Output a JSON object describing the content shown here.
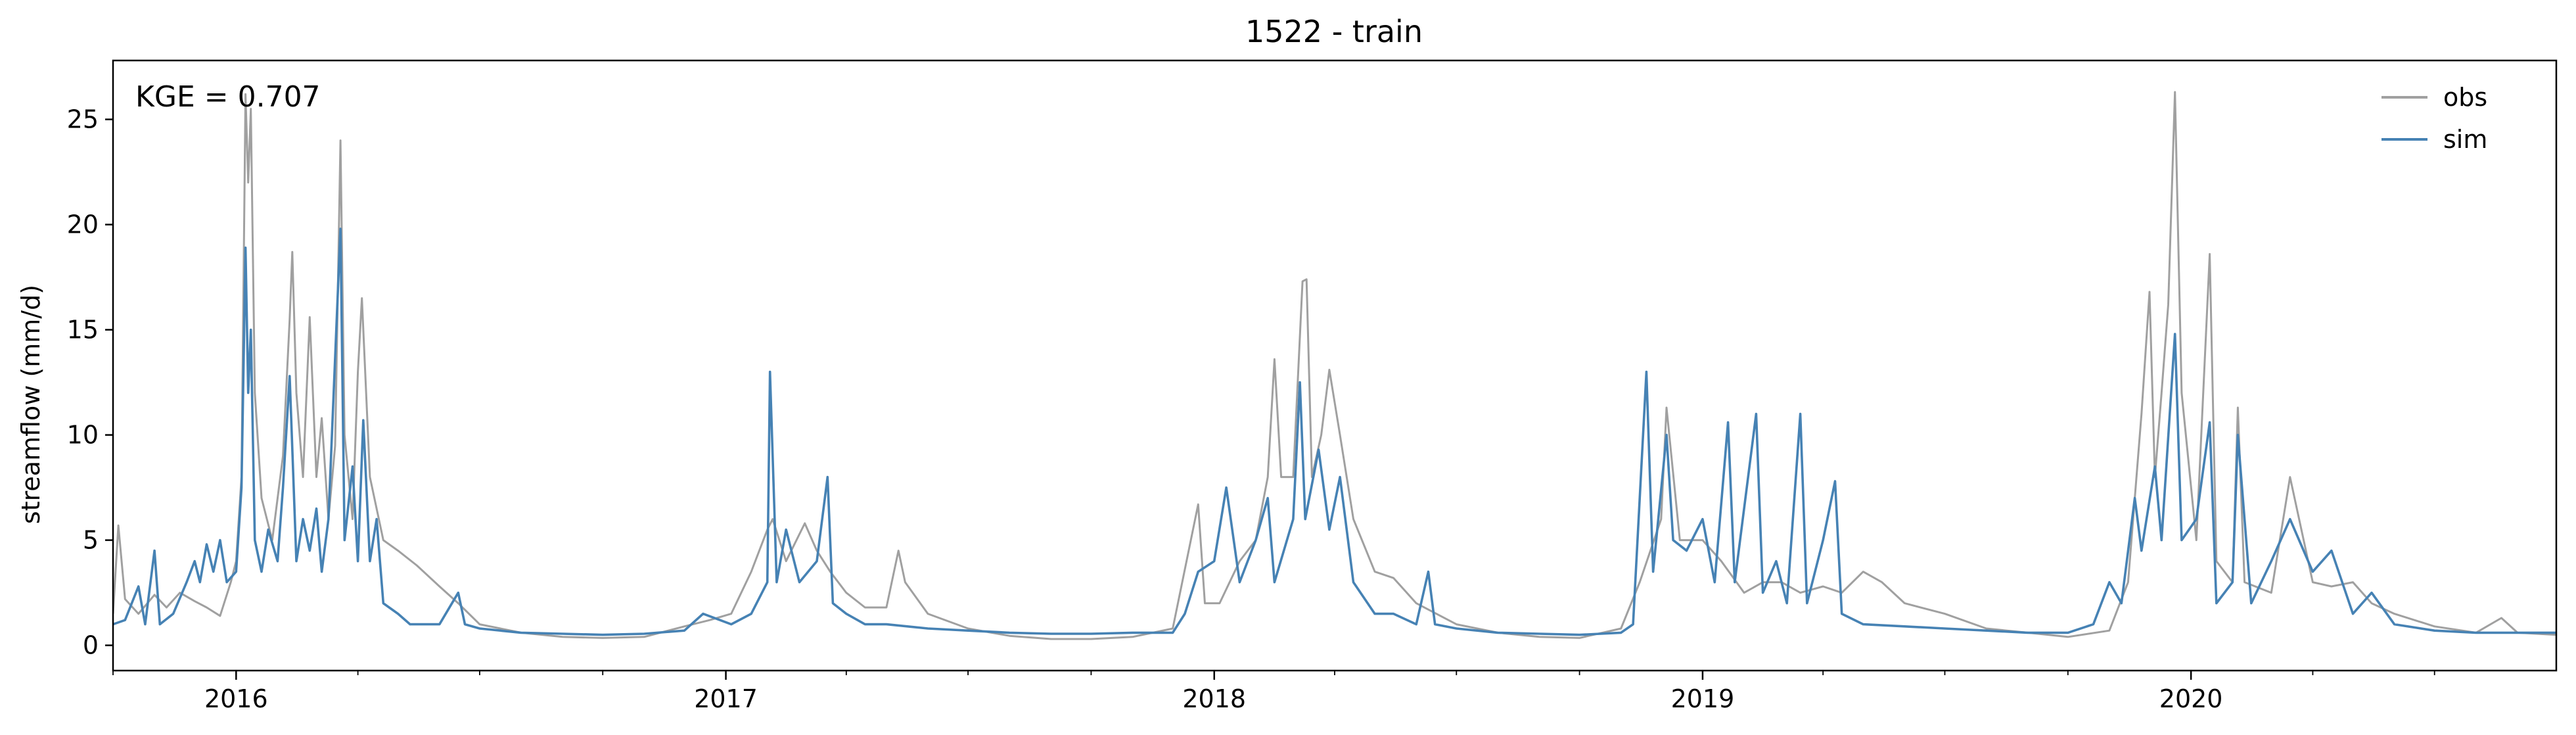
{
  "chart_data": {
    "type": "line",
    "title": "1522 - train",
    "xlabel": "",
    "ylabel": "streamflow (mm/d)",
    "xlim": [
      "2015-10-01",
      "2020-09-30"
    ],
    "ylim": [
      -1.2,
      27.8
    ],
    "x_ticks": [
      "2016",
      "2017",
      "2018",
      "2019",
      "2020"
    ],
    "y_ticks": [
      0,
      5,
      10,
      15,
      20,
      25
    ],
    "grid": false,
    "legend_position": "top-right",
    "annotation": "KGE = 0.707",
    "series": [
      {
        "name": "obs",
        "color": "#a0a0a0",
        "points": [
          [
            "2015-10-01",
            1.5
          ],
          [
            "2015-10-05",
            5.7
          ],
          [
            "2015-10-10",
            2.2
          ],
          [
            "2015-10-20",
            1.5
          ],
          [
            "2015-11-01",
            2.4
          ],
          [
            "2015-11-10",
            1.8
          ],
          [
            "2015-11-20",
            2.5
          ],
          [
            "2015-12-01",
            2.1
          ],
          [
            "2015-12-10",
            1.8
          ],
          [
            "2015-12-20",
            1.4
          ],
          [
            "2015-12-28",
            3.0
          ],
          [
            "2016-01-01",
            4.0
          ],
          [
            "2016-01-05",
            8.0
          ],
          [
            "2016-01-08",
            26.2
          ],
          [
            "2016-01-10",
            22.0
          ],
          [
            "2016-01-12",
            25.5
          ],
          [
            "2016-01-15",
            12.0
          ],
          [
            "2016-01-20",
            7.0
          ],
          [
            "2016-01-28",
            5.0
          ],
          [
            "2016-02-05",
            9.0
          ],
          [
            "2016-02-10",
            15.5
          ],
          [
            "2016-02-12",
            18.7
          ],
          [
            "2016-02-15",
            12.0
          ],
          [
            "2016-02-20",
            8.0
          ],
          [
            "2016-02-25",
            15.6
          ],
          [
            "2016-03-01",
            8.0
          ],
          [
            "2016-03-05",
            10.8
          ],
          [
            "2016-03-10",
            6.0
          ],
          [
            "2016-03-15",
            9.5
          ],
          [
            "2016-03-19",
            24.0
          ],
          [
            "2016-03-22",
            10.0
          ],
          [
            "2016-03-28",
            6.0
          ],
          [
            "2016-04-01",
            13.0
          ],
          [
            "2016-04-04",
            16.5
          ],
          [
            "2016-04-10",
            8.0
          ],
          [
            "2016-04-20",
            5.0
          ],
          [
            "2016-05-01",
            4.5
          ],
          [
            "2016-05-15",
            3.8
          ],
          [
            "2016-06-01",
            2.8
          ],
          [
            "2016-06-15",
            2.0
          ],
          [
            "2016-07-01",
            1.0
          ],
          [
            "2016-08-01",
            0.6
          ],
          [
            "2016-09-01",
            0.4
          ],
          [
            "2016-10-01",
            0.35
          ],
          [
            "2016-11-01",
            0.4
          ],
          [
            "2016-12-01",
            0.9
          ],
          [
            "2016-12-20",
            1.2
          ],
          [
            "2017-01-05",
            1.5
          ],
          [
            "2017-01-20",
            3.5
          ],
          [
            "2017-02-01",
            5.5
          ],
          [
            "2017-02-05",
            6.0
          ],
          [
            "2017-02-15",
            4.0
          ],
          [
            "2017-03-01",
            5.8
          ],
          [
            "2017-03-10",
            4.5
          ],
          [
            "2017-03-20",
            3.5
          ],
          [
            "2017-04-01",
            2.5
          ],
          [
            "2017-04-15",
            1.8
          ],
          [
            "2017-05-01",
            1.8
          ],
          [
            "2017-05-10",
            4.5
          ],
          [
            "2017-05-15",
            3.0
          ],
          [
            "2017-06-01",
            1.5
          ],
          [
            "2017-07-01",
            0.8
          ],
          [
            "2017-08-01",
            0.45
          ],
          [
            "2017-09-01",
            0.3
          ],
          [
            "2017-10-01",
            0.3
          ],
          [
            "2017-11-01",
            0.4
          ],
          [
            "2017-12-01",
            0.8
          ],
          [
            "2017-12-20",
            6.7
          ],
          [
            "2017-12-25",
            2.0
          ],
          [
            "2018-01-05",
            2.0
          ],
          [
            "2018-01-20",
            4.0
          ],
          [
            "2018-02-01",
            5.0
          ],
          [
            "2018-02-10",
            8.0
          ],
          [
            "2018-02-15",
            13.6
          ],
          [
            "2018-02-20",
            8.0
          ],
          [
            "2018-03-01",
            8.0
          ],
          [
            "2018-03-08",
            17.3
          ],
          [
            "2018-03-11",
            17.4
          ],
          [
            "2018-03-15",
            8.0
          ],
          [
            "2018-03-22",
            10.0
          ],
          [
            "2018-03-28",
            13.1
          ],
          [
            "2018-04-05",
            10.0
          ],
          [
            "2018-04-15",
            6.0
          ],
          [
            "2018-05-01",
            3.5
          ],
          [
            "2018-05-15",
            3.2
          ],
          [
            "2018-06-01",
            2.0
          ],
          [
            "2018-07-01",
            1.0
          ],
          [
            "2018-08-01",
            0.6
          ],
          [
            "2018-09-01",
            0.4
          ],
          [
            "2018-10-01",
            0.35
          ],
          [
            "2018-11-01",
            0.8
          ],
          [
            "2018-11-15",
            3.0
          ],
          [
            "2018-12-01",
            6.0
          ],
          [
            "2018-12-05",
            11.3
          ],
          [
            "2018-12-15",
            5.0
          ],
          [
            "2019-01-01",
            5.0
          ],
          [
            "2019-01-15",
            4.0
          ],
          [
            "2019-02-01",
            2.5
          ],
          [
            "2019-02-15",
            3.0
          ],
          [
            "2019-03-01",
            3.0
          ],
          [
            "2019-03-15",
            2.5
          ],
          [
            "2019-04-01",
            2.8
          ],
          [
            "2019-04-15",
            2.5
          ],
          [
            "2019-05-01",
            3.5
          ],
          [
            "2019-05-15",
            3.0
          ],
          [
            "2019-06-01",
            2.0
          ],
          [
            "2019-07-01",
            1.5
          ],
          [
            "2019-08-01",
            0.8
          ],
          [
            "2019-09-01",
            0.6
          ],
          [
            "2019-10-01",
            0.4
          ],
          [
            "2019-11-01",
            0.7
          ],
          [
            "2019-11-15",
            3.0
          ],
          [
            "2019-11-25",
            11.0
          ],
          [
            "2019-12-01",
            16.8
          ],
          [
            "2019-12-05",
            8.0
          ],
          [
            "2019-12-10",
            12.0
          ],
          [
            "2019-12-15",
            16.2
          ],
          [
            "2019-12-20",
            26.3
          ],
          [
            "2019-12-25",
            12.0
          ],
          [
            "2020-01-05",
            5.0
          ],
          [
            "2020-01-15",
            18.6
          ],
          [
            "2020-01-20",
            4.0
          ],
          [
            "2020-02-01",
            3.0
          ],
          [
            "2020-02-05",
            11.3
          ],
          [
            "2020-02-10",
            3.0
          ],
          [
            "2020-03-01",
            2.5
          ],
          [
            "2020-03-15",
            8.0
          ],
          [
            "2020-04-01",
            3.0
          ],
          [
            "2020-04-15",
            2.8
          ],
          [
            "2020-05-01",
            3.0
          ],
          [
            "2020-05-15",
            2.0
          ],
          [
            "2020-06-01",
            1.5
          ],
          [
            "2020-07-01",
            0.9
          ],
          [
            "2020-08-01",
            0.6
          ],
          [
            "2020-08-20",
            1.3
          ],
          [
            "2020-09-01",
            0.6
          ],
          [
            "2020-09-30",
            0.5
          ]
        ]
      },
      {
        "name": "sim",
        "color": "#4682b4",
        "points": [
          [
            "2015-10-01",
            1.0
          ],
          [
            "2015-10-10",
            1.2
          ],
          [
            "2015-10-20",
            2.8
          ],
          [
            "2015-10-25",
            1.0
          ],
          [
            "2015-11-01",
            4.5
          ],
          [
            "2015-11-05",
            1.0
          ],
          [
            "2015-11-15",
            1.5
          ],
          [
            "2015-11-25",
            3.0
          ],
          [
            "2015-12-01",
            4.0
          ],
          [
            "2015-12-05",
            3.0
          ],
          [
            "2015-12-10",
            4.8
          ],
          [
            "2015-12-15",
            3.5
          ],
          [
            "2015-12-20",
            5.0
          ],
          [
            "2015-12-25",
            3.0
          ],
          [
            "2016-01-01",
            3.5
          ],
          [
            "2016-01-05",
            7.5
          ],
          [
            "2016-01-08",
            18.9
          ],
          [
            "2016-01-10",
            12.0
          ],
          [
            "2016-01-12",
            15.0
          ],
          [
            "2016-01-15",
            5.0
          ],
          [
            "2016-01-20",
            3.5
          ],
          [
            "2016-01-25",
            5.5
          ],
          [
            "2016-02-01",
            4.0
          ],
          [
            "2016-02-05",
            7.5
          ],
          [
            "2016-02-10",
            12.8
          ],
          [
            "2016-02-15",
            4.0
          ],
          [
            "2016-02-20",
            6.0
          ],
          [
            "2016-02-25",
            4.5
          ],
          [
            "2016-03-01",
            6.5
          ],
          [
            "2016-03-05",
            3.5
          ],
          [
            "2016-03-10",
            6.0
          ],
          [
            "2016-03-19",
            19.8
          ],
          [
            "2016-03-22",
            5.0
          ],
          [
            "2016-03-28",
            8.5
          ],
          [
            "2016-04-01",
            4.0
          ],
          [
            "2016-04-05",
            10.7
          ],
          [
            "2016-04-10",
            4.0
          ],
          [
            "2016-04-15",
            6.0
          ],
          [
            "2016-04-20",
            2.0
          ],
          [
            "2016-05-01",
            1.5
          ],
          [
            "2016-05-10",
            1.0
          ],
          [
            "2016-06-01",
            1.0
          ],
          [
            "2016-06-15",
            2.5
          ],
          [
            "2016-06-20",
            1.0
          ],
          [
            "2016-07-01",
            0.8
          ],
          [
            "2016-08-01",
            0.6
          ],
          [
            "2016-09-01",
            0.55
          ],
          [
            "2016-10-01",
            0.5
          ],
          [
            "2016-11-01",
            0.55
          ],
          [
            "2016-12-01",
            0.7
          ],
          [
            "2016-12-15",
            1.5
          ],
          [
            "2017-01-05",
            1.0
          ],
          [
            "2017-01-20",
            1.5
          ],
          [
            "2017-02-01",
            3.0
          ],
          [
            "2017-02-03",
            13.0
          ],
          [
            "2017-02-08",
            3.0
          ],
          [
            "2017-02-15",
            5.5
          ],
          [
            "2017-02-25",
            3.0
          ],
          [
            "2017-03-10",
            4.0
          ],
          [
            "2017-03-18",
            8.0
          ],
          [
            "2017-03-22",
            2.0
          ],
          [
            "2017-04-01",
            1.5
          ],
          [
            "2017-04-15",
            1.0
          ],
          [
            "2017-05-01",
            1.0
          ],
          [
            "2017-06-01",
            0.8
          ],
          [
            "2017-07-01",
            0.7
          ],
          [
            "2017-08-01",
            0.6
          ],
          [
            "2017-09-01",
            0.55
          ],
          [
            "2017-10-01",
            0.55
          ],
          [
            "2017-11-01",
            0.6
          ],
          [
            "2017-12-01",
            0.6
          ],
          [
            "2017-12-10",
            1.5
          ],
          [
            "2017-12-20",
            3.5
          ],
          [
            "2018-01-01",
            4.0
          ],
          [
            "2018-01-10",
            7.5
          ],
          [
            "2018-01-20",
            3.0
          ],
          [
            "2018-02-01",
            5.0
          ],
          [
            "2018-02-10",
            7.0
          ],
          [
            "2018-02-15",
            3.0
          ],
          [
            "2018-03-01",
            6.0
          ],
          [
            "2018-03-06",
            12.5
          ],
          [
            "2018-03-10",
            6.0
          ],
          [
            "2018-03-20",
            9.3
          ],
          [
            "2018-03-28",
            5.5
          ],
          [
            "2018-04-05",
            8.0
          ],
          [
            "2018-04-15",
            3.0
          ],
          [
            "2018-05-01",
            1.5
          ],
          [
            "2018-05-15",
            1.5
          ],
          [
            "2018-06-01",
            1.0
          ],
          [
            "2018-06-10",
            3.5
          ],
          [
            "2018-06-15",
            1.0
          ],
          [
            "2018-07-01",
            0.8
          ],
          [
            "2018-08-01",
            0.6
          ],
          [
            "2018-09-01",
            0.55
          ],
          [
            "2018-10-01",
            0.5
          ],
          [
            "2018-11-01",
            0.6
          ],
          [
            "2018-11-10",
            1.0
          ],
          [
            "2018-11-20",
            13.0
          ],
          [
            "2018-11-25",
            3.5
          ],
          [
            "2018-12-05",
            10.0
          ],
          [
            "2018-12-10",
            5.0
          ],
          [
            "2018-12-20",
            4.5
          ],
          [
            "2019-01-01",
            6.0
          ],
          [
            "2019-01-10",
            3.0
          ],
          [
            "2019-01-20",
            10.6
          ],
          [
            "2019-01-25",
            3.0
          ],
          [
            "2019-02-10",
            11.0
          ],
          [
            "2019-02-15",
            2.5
          ],
          [
            "2019-02-25",
            4.0
          ],
          [
            "2019-03-05",
            2.0
          ],
          [
            "2019-03-15",
            11.0
          ],
          [
            "2019-03-20",
            2.0
          ],
          [
            "2019-04-01",
            5.0
          ],
          [
            "2019-04-10",
            7.8
          ],
          [
            "2019-04-15",
            1.5
          ],
          [
            "2019-05-01",
            1.0
          ],
          [
            "2019-06-01",
            0.9
          ],
          [
            "2019-07-01",
            0.8
          ],
          [
            "2019-08-01",
            0.7
          ],
          [
            "2019-09-01",
            0.6
          ],
          [
            "2019-10-01",
            0.6
          ],
          [
            "2019-10-20",
            1.0
          ],
          [
            "2019-11-01",
            3.0
          ],
          [
            "2019-11-10",
            2.0
          ],
          [
            "2019-11-20",
            7.0
          ],
          [
            "2019-11-25",
            4.5
          ],
          [
            "2019-12-05",
            8.5
          ],
          [
            "2019-12-10",
            5.0
          ],
          [
            "2019-12-20",
            14.8
          ],
          [
            "2019-12-25",
            5.0
          ],
          [
            "2020-01-05",
            6.0
          ],
          [
            "2020-01-15",
            10.6
          ],
          [
            "2020-01-20",
            2.0
          ],
          [
            "2020-02-01",
            3.0
          ],
          [
            "2020-02-05",
            10.0
          ],
          [
            "2020-02-15",
            2.0
          ],
          [
            "2020-03-01",
            4.0
          ],
          [
            "2020-03-15",
            6.0
          ],
          [
            "2020-04-01",
            3.5
          ],
          [
            "2020-04-15",
            4.5
          ],
          [
            "2020-05-01",
            1.5
          ],
          [
            "2020-05-15",
            2.5
          ],
          [
            "2020-06-01",
            1.0
          ],
          [
            "2020-07-01",
            0.7
          ],
          [
            "2020-08-01",
            0.6
          ],
          [
            "2020-09-01",
            0.6
          ],
          [
            "2020-09-30",
            0.6
          ]
        ]
      }
    ]
  }
}
